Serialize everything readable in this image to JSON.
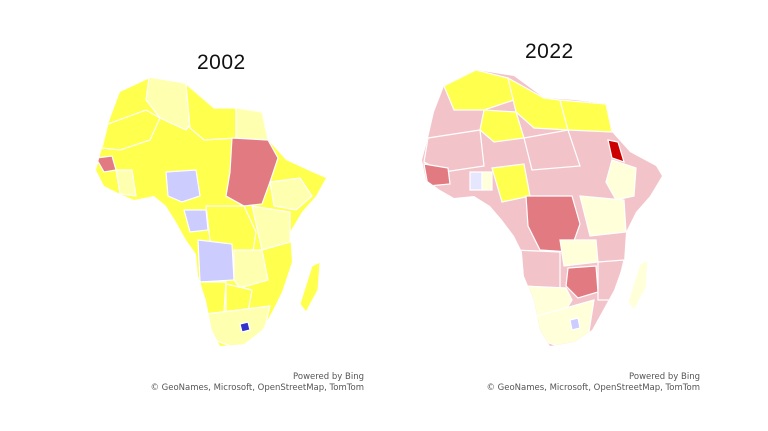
{
  "maps": [
    {
      "year": "2002",
      "attribution": {
        "powered": "Powered by Bing",
        "credits": "© GeoNames, Microsoft, OpenStreetMap, TomTom"
      }
    },
    {
      "year": "2022",
      "attribution": {
        "powered": "Powered by Bing",
        "credits": "© GeoNames, Microsoft, OpenStreetMap, TomTom"
      }
    }
  ],
  "colors": {
    "yellow": "#ffff4d",
    "pale_yellow": "#ffffb0",
    "cream": "#ffffd9",
    "pink": "#f2c4c9",
    "red": "#e27a82",
    "dark_red": "#cc0000",
    "lavender": "#ccccff",
    "blue": "#3333cc",
    "border": "#ffffff"
  }
}
